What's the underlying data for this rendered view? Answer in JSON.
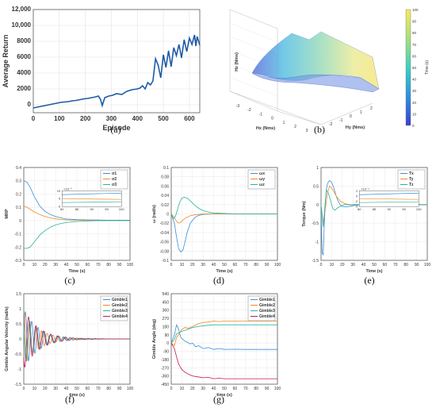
{
  "captions": [
    "(a)",
    "(b)",
    "(c)",
    "(d)",
    "(e)",
    "(f)",
    "(g)"
  ],
  "chart_data": [
    {
      "id": "a",
      "type": "line",
      "xlabel": "Episode",
      "ylabel": "Average Return",
      "xlim": [
        0,
        640
      ],
      "ylim": [
        -1000,
        12000
      ],
      "xticks": [
        0,
        100,
        200,
        300,
        400,
        500,
        600
      ],
      "yticks": [
        0,
        2000,
        4000,
        6000,
        8000,
        10000,
        12000
      ],
      "ytick_labels": [
        "0",
        "2000",
        "4000",
        "6000",
        "8000",
        "10,000",
        "12,000"
      ],
      "color": "#1f5aa6",
      "series": [
        {
          "x": [
            0,
            15,
            30,
            45,
            60,
            75,
            90,
            105,
            120,
            135,
            150,
            165,
            180,
            195,
            210,
            225,
            240,
            250,
            258,
            265,
            275,
            290,
            305,
            320,
            340,
            360,
            380,
            400,
            410,
            420,
            430,
            440,
            450,
            460,
            470,
            480,
            490,
            500,
            510,
            520,
            530,
            540,
            550,
            560,
            570,
            580,
            590,
            600,
            610,
            620,
            625,
            630,
            640
          ],
          "y": [
            -400,
            -300,
            -200,
            -100,
            0,
            100,
            200,
            300,
            350,
            400,
            500,
            550,
            650,
            750,
            800,
            900,
            1000,
            1100,
            700,
            -100,
            900,
            1100,
            1200,
            1400,
            1300,
            1700,
            1900,
            2000,
            2100,
            2400,
            2000,
            2800,
            2500,
            3000,
            5800,
            5000,
            3400,
            6300,
            4700,
            6800,
            4800,
            7200,
            6200,
            7600,
            5900,
            8200,
            6700,
            8400,
            7600,
            8800,
            7400,
            8600,
            7500
          ]
        }
      ]
    },
    {
      "id": "b",
      "type": "surface3d",
      "xlabel": "Hx (Nms)",
      "ylabel": "Hy (Nms)",
      "zlabel": "Hz (Nms)",
      "xticks": [
        -3,
        -2,
        -1,
        0,
        1,
        2,
        3
      ],
      "yticks": [
        -2,
        -1,
        0,
        1,
        2
      ],
      "zticks": [],
      "colorbar": {
        "label": "Time (s)",
        "ticks": [
          0,
          10,
          20,
          30,
          40,
          50,
          60,
          70,
          80,
          90,
          100
        ]
      }
    },
    {
      "id": "c",
      "type": "line",
      "xlabel": "Time (s)",
      "ylabel": "MRP",
      "xlim": [
        0,
        100
      ],
      "ylim": [
        -0.3,
        0.4
      ],
      "xticks": [
        0,
        10,
        20,
        30,
        40,
        50,
        60,
        70,
        80,
        90,
        100
      ],
      "yticks": [
        -0.3,
        -0.2,
        -0.1,
        0,
        0.1,
        0.2,
        0.3,
        0.4
      ],
      "legend": [
        "σ1",
        "σ2",
        "σ3"
      ],
      "inset": {
        "xticks": [
          80,
          85,
          90,
          95,
          100
        ],
        "yticks": [
          0,
          5,
          10
        ],
        "exponent": "×10⁻³"
      },
      "series": [
        {
          "name": "σ1",
          "color": "#3a8fd6",
          "x": [
            0,
            3,
            6,
            10,
            15,
            20,
            25,
            30,
            35,
            40,
            50,
            60,
            70,
            80,
            90,
            100
          ],
          "y": [
            0.3,
            0.29,
            0.25,
            0.18,
            0.11,
            0.07,
            0.045,
            0.03,
            0.02,
            0.012,
            0.007,
            0.005,
            0.004,
            0.003,
            0.003,
            0.003
          ]
        },
        {
          "name": "σ2",
          "color": "#f08a24",
          "x": [
            0,
            3,
            6,
            10,
            15,
            20,
            25,
            30,
            35,
            40,
            50,
            60,
            70,
            80,
            90,
            100
          ],
          "y": [
            0.11,
            0.1,
            0.085,
            0.065,
            0.045,
            0.03,
            0.02,
            0.013,
            0.008,
            0.005,
            0.002,
            0.001,
            0,
            0,
            0,
            0
          ]
        },
        {
          "name": "σ3",
          "color": "#2cb39f",
          "x": [
            0,
            3,
            6,
            10,
            15,
            20,
            25,
            30,
            35,
            40,
            50,
            60,
            70,
            80,
            90,
            100
          ],
          "y": [
            -0.21,
            -0.21,
            -0.2,
            -0.16,
            -0.11,
            -0.075,
            -0.05,
            -0.033,
            -0.022,
            -0.015,
            -0.007,
            -0.003,
            -0.001,
            0,
            0,
            0
          ]
        }
      ]
    },
    {
      "id": "d",
      "type": "line",
      "xlabel": "Time (s)",
      "ylabel": "ω (rad/s)",
      "xlim": [
        0,
        100
      ],
      "ylim": [
        -0.1,
        0.1
      ],
      "xticks": [
        0,
        10,
        20,
        30,
        40,
        50,
        60,
        70,
        80,
        90,
        100
      ],
      "yticks": [
        -0.1,
        -0.08,
        -0.06,
        -0.04,
        -0.02,
        0,
        0.02,
        0.04,
        0.06,
        0.08,
        0.1
      ],
      "legend": [
        "ωx",
        "ωy",
        "ωz"
      ],
      "series": [
        {
          "name": "ωx",
          "color": "#3a8fd6",
          "x": [
            0,
            3,
            5,
            7,
            9,
            11,
            13,
            15,
            18,
            22,
            26,
            30,
            40,
            50,
            60,
            70,
            100
          ],
          "y": [
            0,
            -0.02,
            -0.05,
            -0.075,
            -0.082,
            -0.078,
            -0.06,
            -0.04,
            -0.02,
            -0.008,
            -0.003,
            -0.001,
            0,
            0,
            0,
            0,
            0
          ]
        },
        {
          "name": "ωy",
          "color": "#f08a24",
          "x": [
            0,
            3,
            5,
            7,
            9,
            11,
            14,
            18,
            22,
            26,
            30,
            40,
            50,
            60,
            70,
            100
          ],
          "y": [
            0,
            -0.008,
            -0.016,
            -0.02,
            -0.018,
            -0.013,
            -0.008,
            -0.004,
            -0.002,
            -0.001,
            0,
            0,
            0,
            0,
            0,
            0
          ]
        },
        {
          "name": "ωz",
          "color": "#2cb39f",
          "x": [
            0,
            2,
            4,
            6,
            8,
            10,
            12,
            15,
            18,
            22,
            26,
            30,
            35,
            40,
            50,
            60,
            70,
            100
          ],
          "y": [
            0,
            -0.01,
            -0.005,
            0.01,
            0.025,
            0.034,
            0.036,
            0.034,
            0.028,
            0.019,
            0.012,
            0.007,
            0.004,
            0.002,
            0.001,
            0,
            0,
            0
          ]
        }
      ]
    },
    {
      "id": "e",
      "type": "line",
      "xlabel": "Time (s)",
      "ylabel": "Torque (Nm)",
      "xlim": [
        0,
        100
      ],
      "ylim": [
        -1.5,
        1
      ],
      "xticks": [
        0,
        10,
        20,
        30,
        40,
        50,
        60,
        70,
        80,
        90,
        100
      ],
      "yticks": [
        -1.5,
        -1,
        -0.5,
        0,
        0.5,
        1
      ],
      "legend": [
        "Tx",
        "Ty",
        "Tz"
      ],
      "inset": {
        "xticks": [
          80,
          85,
          90,
          95,
          100
        ],
        "yticks": [
          -4,
          -2,
          0,
          2
        ],
        "exponent": "×10⁻⁴"
      },
      "series": [
        {
          "name": "Tx",
          "color": "#3a8fd6",
          "x": [
            0,
            1,
            2,
            3,
            4,
            5,
            6,
            7,
            8,
            10,
            12,
            14,
            16,
            18,
            20,
            24,
            28,
            32,
            40,
            50,
            60,
            100
          ],
          "y": [
            0,
            -1.3,
            -1.35,
            -0.6,
            0.1,
            0.4,
            0.55,
            0.62,
            0.65,
            0.6,
            0.45,
            0.25,
            0.1,
            0,
            -0.05,
            -0.06,
            -0.04,
            -0.02,
            0,
            0,
            0,
            0
          ]
        },
        {
          "name": "Ty",
          "color": "#f08a24",
          "x": [
            0,
            2,
            4,
            6,
            8,
            10,
            12,
            15,
            18,
            22,
            26,
            30,
            40,
            50,
            100
          ],
          "y": [
            0,
            -0.5,
            -0.1,
            0.3,
            0.5,
            0.45,
            0.35,
            0.2,
            0.1,
            0.03,
            0,
            0,
            0,
            0,
            0
          ]
        },
        {
          "name": "Tz",
          "color": "#2cb39f",
          "x": [
            0,
            2,
            3,
            4,
            5,
            7,
            9,
            11,
            13,
            15,
            18,
            22,
            26,
            30,
            40,
            50,
            100
          ],
          "y": [
            0,
            -0.6,
            -0.3,
            0.1,
            0.4,
            0.3,
            0.1,
            -0.1,
            -0.15,
            -0.1,
            -0.05,
            0,
            0,
            0,
            0,
            0,
            0
          ]
        }
      ]
    },
    {
      "id": "f",
      "type": "line",
      "xlabel": "time (s)",
      "ylabel": "Gimble Angular Velocity (rad/s)",
      "xlim": [
        0,
        100
      ],
      "ylim": [
        -1.5,
        1.5
      ],
      "xticks": [
        0,
        10,
        20,
        30,
        40,
        50,
        60,
        70,
        80,
        90,
        100
      ],
      "yticks": [
        -1.5,
        -1,
        -0.5,
        0,
        0.5,
        1,
        1.5
      ],
      "legend": [
        "Gimble1",
        "Gimble2",
        "Gimble3",
        "Gimble4"
      ],
      "series": [
        {
          "name": "Gimble1",
          "color": "#3a8fd6",
          "amp": 1.0,
          "period": 6.0,
          "phase": 0.0,
          "decay": 14
        },
        {
          "name": "Gimble2",
          "color": "#f08a24",
          "amp": 0.9,
          "period": 5.5,
          "phase": 1.4,
          "decay": 14
        },
        {
          "name": "Gimble3",
          "color": "#2cb39f",
          "amp": 0.85,
          "period": 6.5,
          "phase": 2.6,
          "decay": 14
        },
        {
          "name": "Gimble4",
          "color": "#c2185b",
          "amp": 1.0,
          "period": 7.0,
          "phase": 3.8,
          "decay": 14
        }
      ]
    },
    {
      "id": "g",
      "type": "line",
      "xlabel": "time (s)",
      "ylabel": "Gimble Angle (deg)",
      "xlim": [
        0,
        100
      ],
      "ylim": [
        -450,
        540
      ],
      "xticks": [
        0,
        10,
        20,
        30,
        40,
        50,
        60,
        70,
        80,
        90,
        100
      ],
      "yticks": [
        -450,
        -360,
        -270,
        -180,
        -90,
        0,
        90,
        180,
        270,
        360,
        450,
        540
      ],
      "legend": [
        "Gimble1",
        "Gimble2",
        "Gimble3",
        "Gimble4"
      ],
      "series": [
        {
          "name": "Gimble1",
          "color": "#3a8fd6",
          "x": [
            0,
            3,
            5,
            7,
            9,
            11,
            13,
            15,
            18,
            20,
            23,
            26,
            30,
            35,
            40,
            45,
            50,
            60,
            70,
            80,
            90,
            100
          ],
          "y": [
            0,
            90,
            200,
            150,
            60,
            40,
            20,
            10,
            -10,
            0,
            -40,
            -30,
            -60,
            -50,
            -70,
            -60,
            -70,
            -68,
            -70,
            -70,
            -70,
            -70
          ]
        },
        {
          "name": "Gimble2",
          "color": "#f08a24",
          "x": [
            0,
            3,
            5,
            7,
            10,
            13,
            16,
            20,
            25,
            30,
            35,
            40,
            45,
            50,
            60,
            70,
            80,
            90,
            100
          ],
          "y": [
            0,
            -30,
            60,
            90,
            150,
            170,
            160,
            180,
            210,
            225,
            230,
            240,
            235,
            240,
            240,
            240,
            240,
            240,
            240
          ]
        },
        {
          "name": "Gimble3",
          "color": "#2cb39f",
          "x": [
            0,
            3,
            5,
            7,
            10,
            13,
            16,
            20,
            25,
            30,
            35,
            40,
            45,
            50,
            60,
            70,
            80,
            90,
            100
          ],
          "y": [
            0,
            40,
            100,
            110,
            130,
            140,
            150,
            170,
            180,
            190,
            195,
            200,
            200,
            200,
            200,
            200,
            200,
            200,
            200
          ]
        },
        {
          "name": "Gimble4",
          "color": "#c2185b",
          "x": [
            0,
            3,
            5,
            7,
            10,
            13,
            16,
            20,
            25,
            30,
            35,
            40,
            45,
            50,
            60,
            70,
            80,
            90,
            100
          ],
          "y": [
            0,
            -60,
            -150,
            -230,
            -290,
            -320,
            -340,
            -360,
            -370,
            -380,
            -375,
            -390,
            -385,
            -390,
            -390,
            -390,
            -390,
            -390,
            -390
          ]
        }
      ]
    }
  ]
}
